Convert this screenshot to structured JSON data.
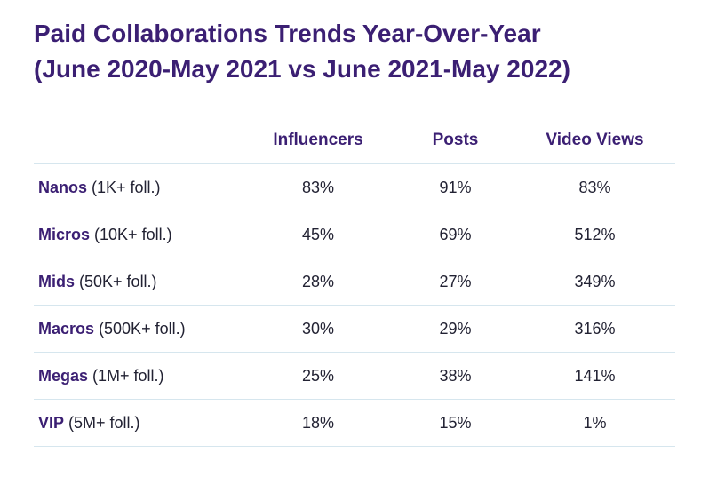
{
  "title": {
    "line1": "Paid Collaborations Trends Year-Over-Year",
    "line2": "(June 2020-May 2021 vs June 2021-May 2022)"
  },
  "colors": {
    "accent": "#3b1f73",
    "text": "#222233",
    "divider": "#d6e6ee"
  },
  "chart_data": {
    "type": "table",
    "title": "Paid Collaborations Trends Year-Over-Year (June 2020-May 2021 vs June 2021-May 2022)",
    "columns": [
      "",
      "Influencers",
      "Posts",
      "Video Views"
    ],
    "rows": [
      {
        "tier": "Nanos",
        "detail": " (1K+ foll.)",
        "influencers": "83%",
        "posts": "91%",
        "video_views": "83%"
      },
      {
        "tier": "Micros",
        "detail": " (10K+ foll.)",
        "influencers": "45%",
        "posts": "69%",
        "video_views": "512%"
      },
      {
        "tier": "Mids",
        "detail": " (50K+ foll.)",
        "influencers": "28%",
        "posts": "27%",
        "video_views": "349%"
      },
      {
        "tier": "Macros",
        "detail": " (500K+ foll.)",
        "influencers": "30%",
        "posts": "29%",
        "video_views": "316%"
      },
      {
        "tier": "Megas",
        "detail": " (1M+ foll.)",
        "influencers": "25%",
        "posts": "38%",
        "video_views": "141%"
      },
      {
        "tier": "VIP",
        "detail": " (5M+ foll.)",
        "influencers": "18%",
        "posts": "15%",
        "video_views": "1%"
      }
    ]
  }
}
